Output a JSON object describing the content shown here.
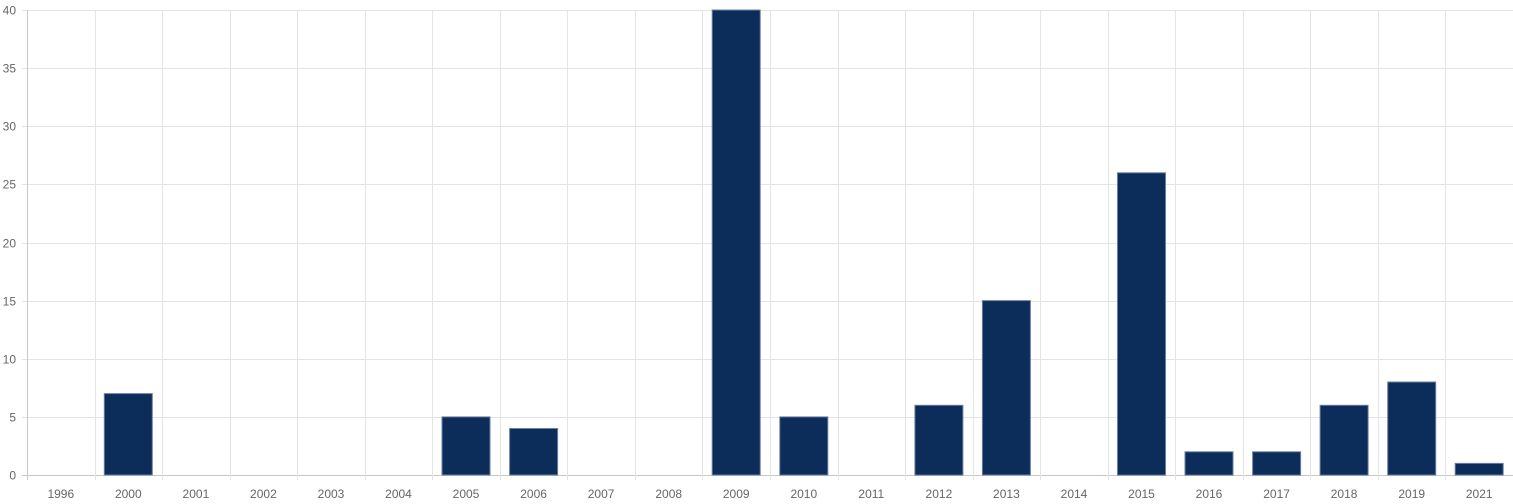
{
  "chart_data": {
    "type": "bar",
    "categories": [
      "1996",
      "2000",
      "2001",
      "2002",
      "2003",
      "2004",
      "2005",
      "2006",
      "2007",
      "2008",
      "2009",
      "2010",
      "2011",
      "2012",
      "2013",
      "2014",
      "2015",
      "2016",
      "2017",
      "2018",
      "2019",
      "2021"
    ],
    "series": [
      {
        "values": [
          0,
          7,
          0,
          0,
          0,
          0,
          5,
          4,
          0,
          0,
          40,
          5,
          0,
          6,
          15,
          0,
          26,
          2,
          2,
          6,
          8,
          1
        ]
      }
    ],
    "title": "",
    "xlabel": "",
    "ylabel": "",
    "ylim": [
      0,
      40
    ],
    "yticks": [
      "0",
      "5",
      "10",
      "15",
      "20",
      "25",
      "30",
      "35",
      "40"
    ],
    "grid": true,
    "legend": "none",
    "colors": {
      "bar": "#0c2c5a",
      "bar_border": "#6b7fa0",
      "grid": "#e4e4e4",
      "axis": "#c8c8c8",
      "tick_text": "#666666"
    }
  }
}
